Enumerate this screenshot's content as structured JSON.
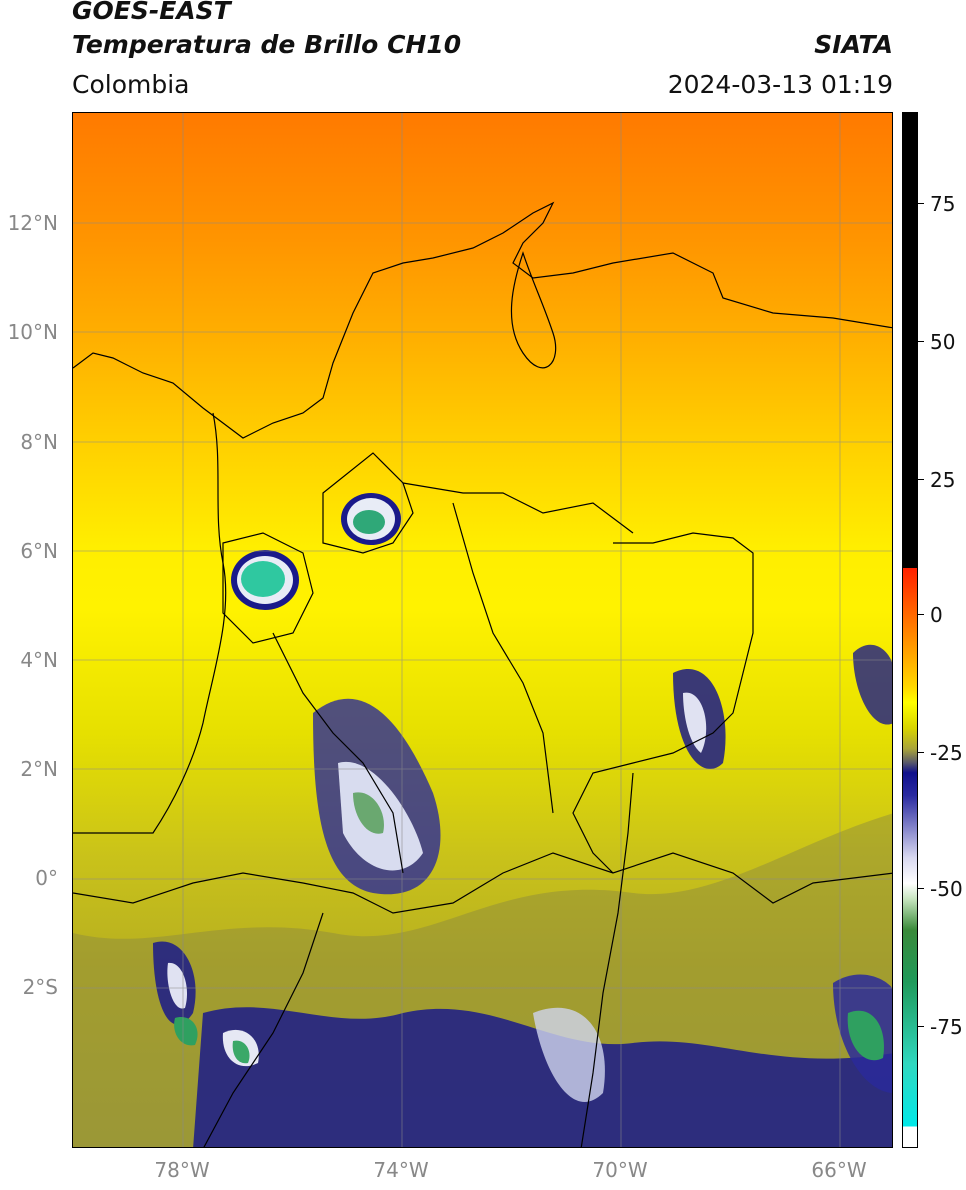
{
  "header": {
    "line1": "GOES-EAST",
    "line2": "Temperatura de Brillo CH10",
    "brand": "SIATA",
    "region": "Colombia",
    "datetime": "2024-03-13 01:19"
  },
  "map": {
    "lat_labels": [
      "12°N",
      "10°N",
      "8°N",
      "6°N",
      "4°N",
      "2°N",
      "0°",
      "2°S"
    ],
    "lon_labels": [
      "78°W",
      "74°W",
      "70°W",
      "66°W"
    ]
  },
  "colorbar": {
    "labels": [
      "75",
      "50",
      "25",
      "0",
      "-25",
      "-50",
      "-75"
    ]
  }
}
